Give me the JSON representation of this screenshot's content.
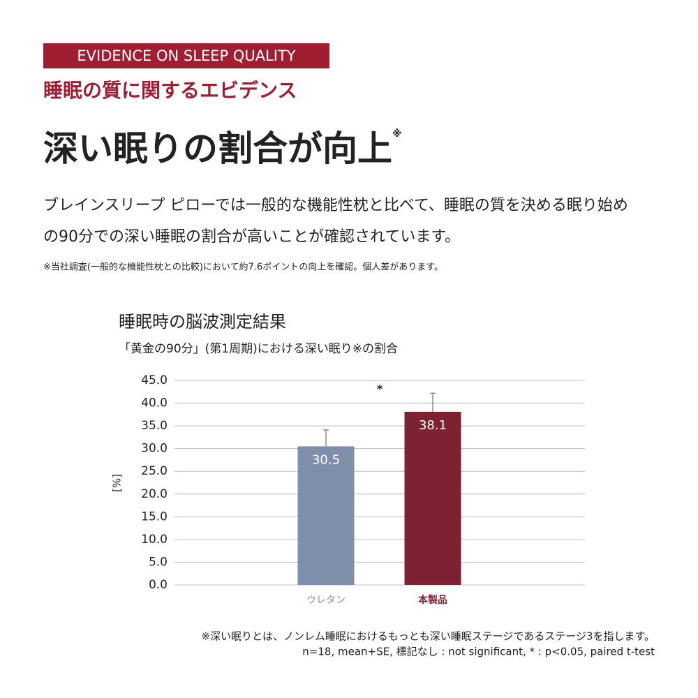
{
  "header": {
    "badge": "EVIDENCE ON SLEEP QUALITY",
    "subtitle": "睡眠の質に関するエビデンス",
    "headline": "深い眠りの割合が向上",
    "headline_mark": "※"
  },
  "body": {
    "lines": [
      "ブレインスリープ ピローでは一般的な機能性枕と比べて、睡眠の質を決める眠り始め",
      "の90分での深い睡眠の割合が高いことが確認されています。"
    ],
    "note": "※当社調査(一般的な機能性枕との比較)において約7.6ポイントの向上を確認。個人差があります。"
  },
  "chart_data": {
    "type": "bar",
    "title": "睡眠時の脳波測定結果",
    "subtitle": "「黄金の90分」(第1周期)における深い眠り※の割合",
    "ylabel": "[%]",
    "categories": [
      "ウレタン",
      "本製品"
    ],
    "values": [
      30.5,
      38.1
    ],
    "errors": [
      3.6,
      4.1
    ],
    "colors": [
      "#7f8fab",
      "#7d2232"
    ],
    "annotation": "*",
    "ylim": [
      0,
      45
    ],
    "yticks": [
      {
        "value": 0,
        "label": "0.0"
      },
      {
        "value": 5,
        "label": "5.0"
      },
      {
        "value": 10,
        "label": "10.0"
      },
      {
        "value": 15,
        "label": "15.0"
      },
      {
        "value": 20,
        "label": "20.0"
      },
      {
        "value": 25,
        "label": "25.0"
      },
      {
        "value": 30,
        "label": "30.0"
      },
      {
        "value": 35,
        "label": "35.0"
      },
      {
        "value": 40,
        "label": "40.0"
      },
      {
        "value": 45,
        "label": "45.0"
      }
    ],
    "grid": true
  },
  "footnotes": [
    "※深い眠りとは、ノンレム睡眠におけるもっとも深い睡眠ステージであるステージ3を指します。",
    "n=18, mean+SE, 標記なし : not significant, * : p<0.05, paired t-test"
  ]
}
